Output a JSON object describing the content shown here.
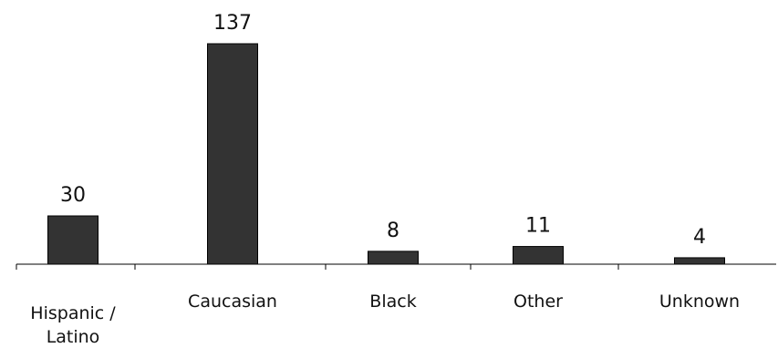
{
  "chart_data": {
    "type": "bar",
    "title": "",
    "xlabel": "",
    "ylabel": "",
    "categories": [
      "Hispanic / Latino",
      "Caucasian",
      "Black",
      "Other",
      "Unknown"
    ],
    "category_lines": [
      [
        "Hispanic /",
        "Latino"
      ],
      [
        "Caucasian"
      ],
      [
        "Black"
      ],
      [
        "Other"
      ],
      [
        "Unknown"
      ]
    ],
    "values": [
      30,
      137,
      8,
      11,
      4
    ],
    "value_labels": [
      "30",
      "137",
      "8",
      "11",
      "4"
    ],
    "ylim": [
      0,
      137
    ],
    "grid": false,
    "legend": "none",
    "bar_color": "#333333"
  }
}
